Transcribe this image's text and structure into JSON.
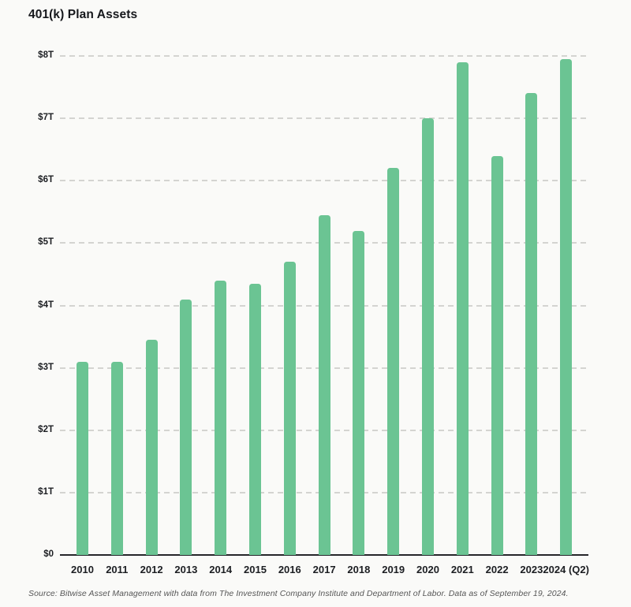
{
  "page": {
    "title": "401(k) Plan Assets",
    "source": "Source: Bitwise Asset Management with data from The Investment Company Institute and Department of Labor. Data as of September 19, 2024."
  },
  "chart_data": {
    "type": "bar",
    "title": "401(k) Plan Assets",
    "categories": [
      "2010",
      "2011",
      "2012",
      "2013",
      "2014",
      "2015",
      "2016",
      "2017",
      "2018",
      "2019",
      "2020",
      "2021",
      "2022",
      "2023",
      "2024 (Q2)"
    ],
    "values": [
      3.1,
      3.1,
      3.45,
      4.1,
      4.4,
      4.35,
      4.7,
      5.45,
      5.2,
      6.2,
      7.0,
      7.9,
      6.4,
      7.4,
      7.95
    ],
    "unit": "trillion USD",
    "xlabel": "",
    "ylabel": "",
    "ylim": [
      0,
      8
    ],
    "ytick_values": [
      0,
      1,
      2,
      3,
      4,
      5,
      6,
      7,
      8
    ],
    "ytick_labels": [
      "$0",
      "$1T",
      "$2T",
      "$3T",
      "$4T",
      "$5T",
      "$6T",
      "$7T",
      "$8T"
    ],
    "grid": "horizontal-dashed",
    "legend": "none",
    "bar_color": "#6bc493",
    "source": "Source: Bitwise Asset Management with data from The Investment Company Institute and Department of Labor. Data as of September 19, 2024."
  },
  "colors": {
    "background": "#fafaf8",
    "bar": "#6bc493",
    "gridline": "#d4d4d1",
    "baseline": "#26262a",
    "text_dark": "#1c1e22",
    "source_gray": "#565656"
  }
}
